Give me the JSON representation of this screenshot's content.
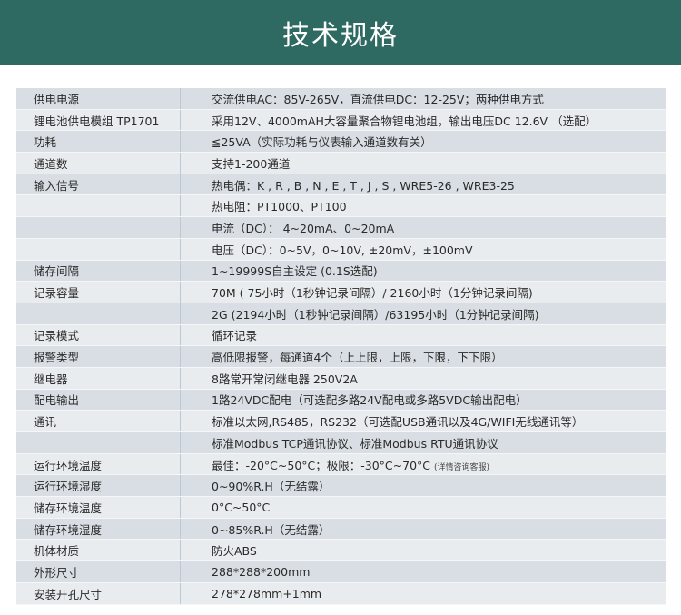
{
  "title": "技术规格",
  "colors": {
    "header": "#2f6a62",
    "row_dark": "#d8dee3",
    "row_light": "#e9ecef"
  },
  "rows": [
    {
      "label": "供电电源",
      "value": "交流供电AC：85V-265V，直流供电DC：12-25V；两种供电方式"
    },
    {
      "label": "锂电池供电模组 TP1701",
      "value": "采用12V、4000mAH大容量聚合物锂电池组，输出电压DC 12.6V （选配）"
    },
    {
      "label": "功耗",
      "value": "≦25VA（实际功耗与仪表输入通道数有关）"
    },
    {
      "label": "通道数",
      "value": "支持1-200通道"
    },
    {
      "label": "输入信号",
      "value": "热电偶：K , R , B , N , E , T , J , S , WRE5-26 , WRE3-25"
    },
    {
      "label": "",
      "value": "热电阻：PT1000、PT100"
    },
    {
      "label": "",
      "value": "电流（DC）： 4~20mA、0~20mA"
    },
    {
      "label": "",
      "value": "电压（DC）：0~5V，0~10V, ±20mV，±100mV"
    },
    {
      "label": "储存间隔",
      "value": "1~19999S自主设定 (0.1S选配)"
    },
    {
      "label": "记录容量",
      "value": "70M ( 75小时（1秒钟记录间隔）/ 2160小时（1分钟记录间隔)"
    },
    {
      "label": "",
      "value": "2G (2194小时（1秒钟记录间隔）/63195小时（1分钟记录间隔)"
    },
    {
      "label": "记录模式",
      "value": "循环记录"
    },
    {
      "label": "报警类型",
      "value": "高低限报警，每通道4个（上上限，上限，下限，下下限）"
    },
    {
      "label": "继电器",
      "value": "8路常开常闭继电器 250V2A"
    },
    {
      "label": "配电输出",
      "value": "1路24VDC配电（可选配多路24V配电或多路5VDC输出配电）"
    },
    {
      "label": "通讯",
      "value": "标准以太网,RS485，RS232（可选配USB通讯以及4G/WIFI无线通讯等）"
    },
    {
      "label": "",
      "value": "标准Modbus TCP通讯协议、标准Modbus RTU通讯协议"
    },
    {
      "label": "运行环境温度",
      "value": "最佳：-20°C~50°C；极限：-30°C~70°C",
      "note": "(详情咨询客服)"
    },
    {
      "label": "运行环境湿度",
      "value": "0~90%R.H（无结露）"
    },
    {
      "label": "储存环境温度",
      "value": "0°C~50°C"
    },
    {
      "label": "储存环境湿度",
      "value": "0~85%R.H（无结露）"
    },
    {
      "label": "机体材质",
      "value": "防火ABS"
    },
    {
      "label": "外形尺寸",
      "value": "288*288*200mm"
    },
    {
      "label": "安装开孔尺寸",
      "value": "278*278mm+1mm"
    }
  ]
}
